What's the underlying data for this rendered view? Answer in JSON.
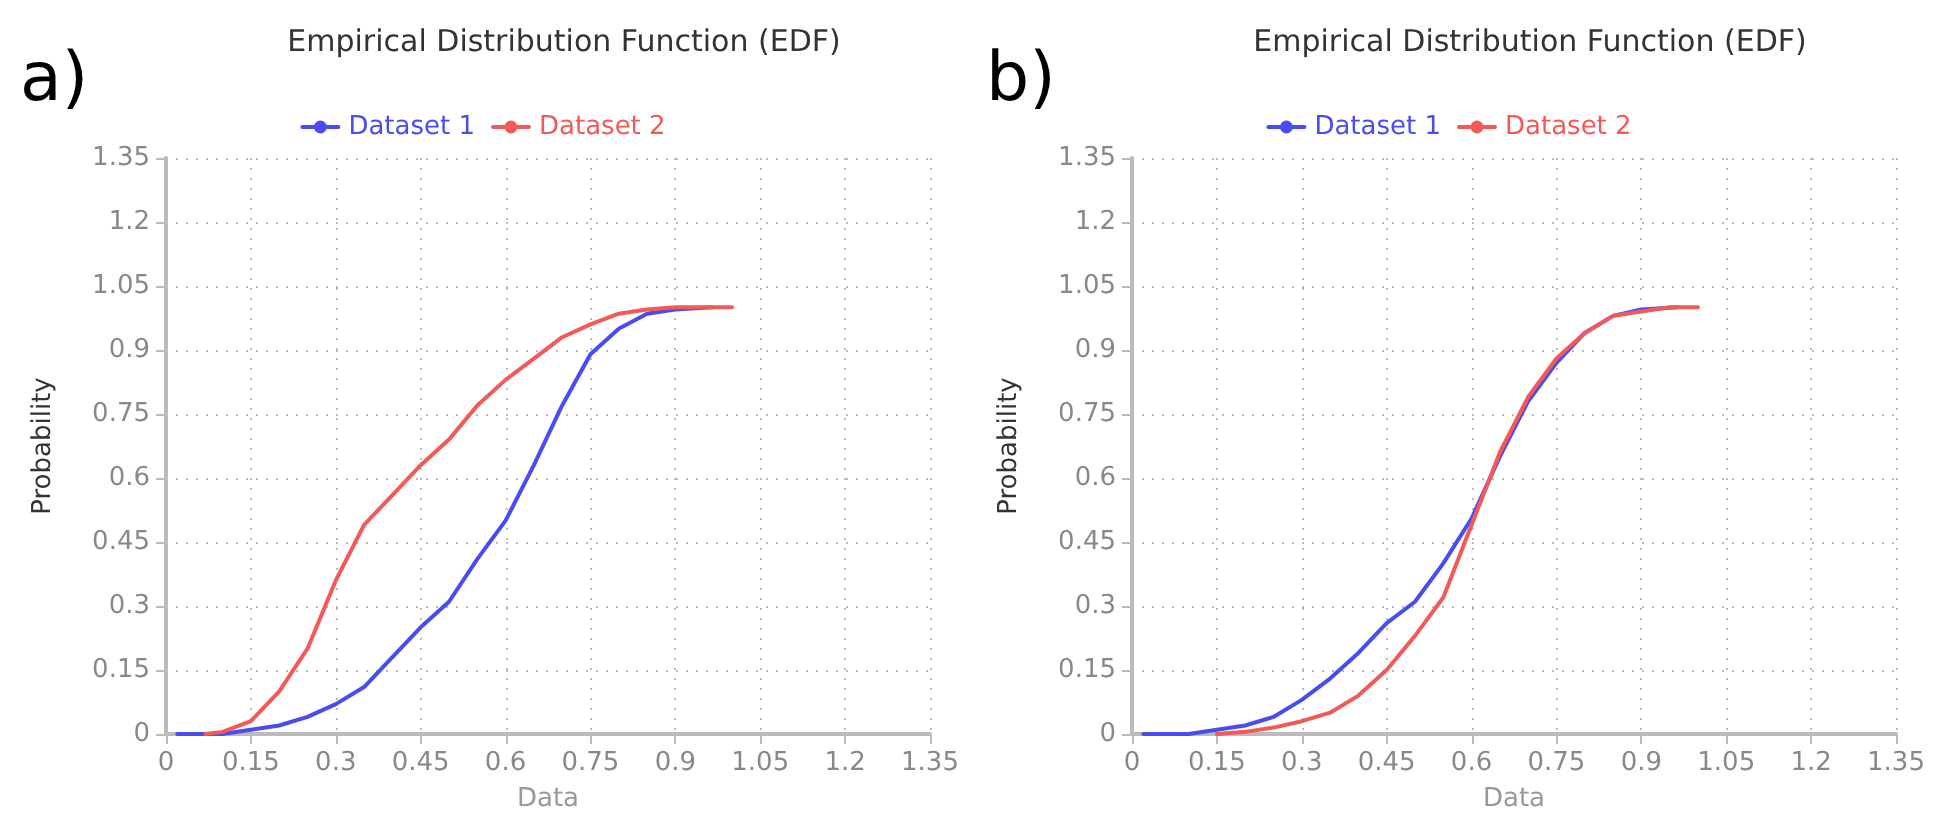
{
  "chart_data": [
    {
      "type": "line",
      "title": "Empirical Distribution Function (EDF)",
      "xlabel": "Data",
      "ylabel": "Probability",
      "annotations": [
        "a)"
      ],
      "xlim": [
        0,
        1.35
      ],
      "xticks": [
        0,
        0.15,
        0.3,
        0.45,
        0.6,
        0.75,
        0.9,
        1.05,
        1.2,
        1.35
      ],
      "ylim": [
        0,
        1.35
      ],
      "yticks": [
        0,
        0.15,
        0.3,
        0.45,
        0.6,
        0.75,
        0.9,
        1.05,
        1.2,
        1.35
      ],
      "grid": true,
      "legend": "top",
      "marker": "none",
      "line_style": "solid",
      "series": [
        {
          "name": "Dataset 1",
          "color": "#4a4cf0",
          "x": [
            0.02,
            0.1,
            0.15,
            0.2,
            0.25,
            0.3,
            0.35,
            0.4,
            0.45,
            0.5,
            0.55,
            0.6,
            0.65,
            0.7,
            0.75,
            0.8,
            0.85,
            0.9,
            0.965
          ],
          "values": [
            0,
            0,
            0.01,
            0.02,
            0.04,
            0.07,
            0.11,
            0.18,
            0.25,
            0.31,
            0.41,
            0.5,
            0.63,
            0.77,
            0.89,
            0.95,
            0.985,
            0.995,
            1.0
          ]
        },
        {
          "name": "Dataset 2",
          "color": "#f25a5a",
          "x": [
            0.07,
            0.1,
            0.15,
            0.2,
            0.25,
            0.3,
            0.35,
            0.4,
            0.45,
            0.5,
            0.55,
            0.6,
            0.65,
            0.7,
            0.75,
            0.8,
            0.85,
            0.9,
            1.0
          ],
          "values": [
            0,
            0.005,
            0.03,
            0.1,
            0.2,
            0.36,
            0.49,
            0.56,
            0.63,
            0.69,
            0.77,
            0.83,
            0.88,
            0.93,
            0.96,
            0.985,
            0.995,
            1.0,
            1.0
          ]
        }
      ]
    },
    {
      "type": "line",
      "title": "Empirical Distribution Function (EDF)",
      "xlabel": "Data",
      "ylabel": "Probability",
      "annotations": [
        "b)"
      ],
      "xlim": [
        0,
        1.35
      ],
      "xticks": [
        0,
        0.15,
        0.3,
        0.45,
        0.6,
        0.75,
        0.9,
        1.05,
        1.2,
        1.35
      ],
      "ylim": [
        0,
        1.35
      ],
      "yticks": [
        0,
        0.15,
        0.3,
        0.45,
        0.6,
        0.75,
        0.9,
        1.05,
        1.2,
        1.35
      ],
      "grid": true,
      "legend": "top",
      "marker": "none",
      "line_style": "solid",
      "series": [
        {
          "name": "Dataset 1",
          "color": "#4a4cf0",
          "x": [
            0.02,
            0.1,
            0.15,
            0.2,
            0.25,
            0.3,
            0.35,
            0.4,
            0.45,
            0.5,
            0.55,
            0.6,
            0.65,
            0.7,
            0.75,
            0.8,
            0.85,
            0.9,
            0.965
          ],
          "values": [
            0,
            0,
            0.01,
            0.02,
            0.04,
            0.08,
            0.13,
            0.19,
            0.26,
            0.31,
            0.4,
            0.505,
            0.65,
            0.78,
            0.87,
            0.94,
            0.98,
            0.995,
            1.0
          ]
        },
        {
          "name": "Dataset 2",
          "color": "#f25a5a",
          "x": [
            0.15,
            0.2,
            0.25,
            0.3,
            0.35,
            0.4,
            0.45,
            0.5,
            0.55,
            0.6,
            0.65,
            0.7,
            0.75,
            0.8,
            0.85,
            0.9,
            0.95,
            1.0
          ],
          "values": [
            0,
            0.005,
            0.015,
            0.03,
            0.05,
            0.09,
            0.15,
            0.23,
            0.32,
            0.49,
            0.66,
            0.79,
            0.88,
            0.94,
            0.98,
            0.99,
            1.0,
            1.0
          ]
        }
      ]
    }
  ]
}
